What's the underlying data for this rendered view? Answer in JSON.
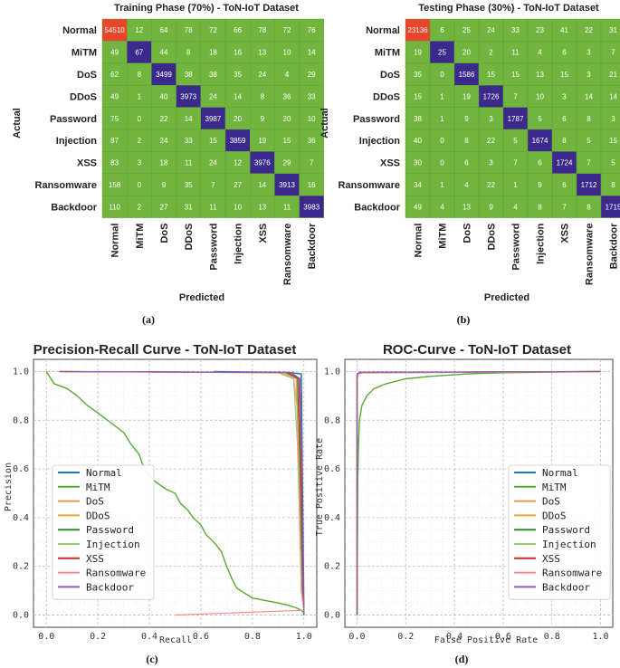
{
  "captions": [
    "(a)",
    "(b)",
    "(c)",
    "(d)"
  ],
  "colors": {
    "cell_default": "#72b53e",
    "cell_diag": "#3b2a8c",
    "cell_max": "#e8452b",
    "grid": "#cccccc"
  },
  "chart_data": [
    {
      "type": "heatmap",
      "title": "Training Phase (70%) - ToN-IoT Dataset",
      "xlabel": "Predicted",
      "ylabel": "Actual",
      "labels": [
        "Normal",
        "MiTM",
        "DoS",
        "DDoS",
        "Password",
        "Injection",
        "XSS",
        "Ransomware",
        "Backdoor"
      ],
      "matrix": [
        [
          54510,
          12,
          64,
          78,
          72,
          66,
          78,
          72,
          76
        ],
        [
          49,
          67,
          44,
          8,
          18,
          16,
          13,
          10,
          14
        ],
        [
          62,
          8,
          3499,
          38,
          38,
          35,
          24,
          4,
          29
        ],
        [
          49,
          1,
          40,
          3973,
          24,
          14,
          8,
          36,
          33
        ],
        [
          75,
          0,
          22,
          14,
          3987,
          20,
          9,
          20,
          10
        ],
        [
          87,
          2,
          24,
          33,
          15,
          3859,
          19,
          15,
          36
        ],
        [
          83,
          3,
          18,
          11,
          24,
          12,
          3976,
          29,
          7
        ],
        [
          158,
          0,
          9,
          35,
          7,
          27,
          14,
          3913,
          16
        ],
        [
          110,
          2,
          27,
          31,
          11,
          10,
          13,
          11,
          3983
        ]
      ]
    },
    {
      "type": "heatmap",
      "title": "Testing Phase (30%) - ToN-IoT Dataset",
      "xlabel": "Predicted",
      "ylabel": "Actual",
      "labels": [
        "Normal",
        "MiTM",
        "DoS",
        "DDoS",
        "Password",
        "Injection",
        "XSS",
        "Ransomware",
        "Backdoor"
      ],
      "matrix": [
        [
          23136,
          6,
          25,
          24,
          33,
          23,
          41,
          22,
          31
        ],
        [
          19,
          25,
          20,
          2,
          11,
          4,
          6,
          3,
          7
        ],
        [
          35,
          0,
          1586,
          15,
          15,
          13,
          15,
          3,
          21
        ],
        [
          15,
          1,
          19,
          1726,
          7,
          10,
          3,
          14,
          14
        ],
        [
          38,
          1,
          9,
          3,
          1787,
          5,
          6,
          8,
          3
        ],
        [
          40,
          0,
          8,
          22,
          5,
          1674,
          8,
          5,
          15
        ],
        [
          30,
          0,
          6,
          3,
          7,
          6,
          1724,
          7,
          5
        ],
        [
          34,
          1,
          4,
          22,
          1,
          9,
          6,
          1712,
          8
        ],
        [
          49,
          4,
          13,
          9,
          4,
          8,
          7,
          8,
          1715
        ]
      ]
    },
    {
      "type": "line",
      "title": "Precision-Recall Curve - ToN-IoT Dataset",
      "xlabel": "Recall",
      "ylabel": "Precision",
      "xlim": [
        -0.05,
        1.05
      ],
      "ylim": [
        -0.05,
        1.05
      ],
      "xticks": [
        "0.0",
        "0.2",
        "0.4",
        "0.6",
        "0.8",
        "1.0"
      ],
      "yticks": [
        "0.0",
        "0.2",
        "0.4",
        "0.6",
        "0.8",
        "1.0"
      ],
      "series": [
        {
          "name": "Normal",
          "color": "#1f77b4",
          "width": 1.5,
          "points": [
            [
              0.65,
              1.0
            ],
            [
              0.95,
              0.995
            ],
            [
              0.99,
              0.99
            ],
            [
              0.995,
              0.5
            ],
            [
              1.0,
              0.0
            ]
          ]
        },
        {
          "name": "MiTM",
          "color": "#5aa832",
          "width": 1.4,
          "points": [
            [
              0.0,
              1.0
            ],
            [
              0.03,
              0.95
            ],
            [
              0.08,
              0.93
            ],
            [
              0.12,
              0.9
            ],
            [
              0.16,
              0.86
            ],
            [
              0.2,
              0.83
            ],
            [
              0.25,
              0.79
            ],
            [
              0.3,
              0.75
            ],
            [
              0.33,
              0.7
            ],
            [
              0.36,
              0.66
            ],
            [
              0.38,
              0.6
            ],
            [
              0.42,
              0.55
            ],
            [
              0.46,
              0.52
            ],
            [
              0.5,
              0.5
            ],
            [
              0.52,
              0.46
            ],
            [
              0.55,
              0.43
            ],
            [
              0.57,
              0.4
            ],
            [
              0.6,
              0.37
            ],
            [
              0.62,
              0.33
            ],
            [
              0.65,
              0.3
            ],
            [
              0.68,
              0.26
            ],
            [
              0.7,
              0.2
            ],
            [
              0.72,
              0.15
            ],
            [
              0.74,
              0.11
            ],
            [
              0.77,
              0.09
            ],
            [
              0.8,
              0.07
            ],
            [
              0.85,
              0.06
            ],
            [
              0.9,
              0.05
            ],
            [
              0.94,
              0.04
            ],
            [
              0.97,
              0.03
            ],
            [
              0.99,
              0.02
            ],
            [
              1.0,
              0.01
            ]
          ]
        },
        {
          "name": "DoS",
          "color": "#e89a55",
          "width": 1.2,
          "points": [
            [
              0.05,
              1.0
            ],
            [
              0.9,
              0.995
            ],
            [
              0.96,
              0.97
            ],
            [
              0.98,
              0.8
            ],
            [
              0.99,
              0.3
            ],
            [
              1.0,
              0.02
            ]
          ]
        },
        {
          "name": "DDoS",
          "color": "#f0a040",
          "width": 1.2,
          "points": [
            [
              0.05,
              1.0
            ],
            [
              0.92,
              0.996
            ],
            [
              0.97,
              0.97
            ],
            [
              0.985,
              0.7
            ],
            [
              0.995,
              0.1
            ],
            [
              1.0,
              0.02
            ]
          ]
        },
        {
          "name": "Password",
          "color": "#2e8b2e",
          "width": 1.2,
          "points": [
            [
              0.05,
              1.0
            ],
            [
              0.93,
              0.996
            ],
            [
              0.975,
              0.97
            ],
            [
              0.985,
              0.6
            ],
            [
              0.995,
              0.1
            ],
            [
              1.0,
              0.02
            ]
          ]
        },
        {
          "name": "Injection",
          "color": "#8fd16f",
          "width": 1.2,
          "points": [
            [
              0.05,
              1.0
            ],
            [
              0.91,
              0.995
            ],
            [
              0.96,
              0.97
            ],
            [
              0.975,
              0.7
            ],
            [
              0.99,
              0.1
            ],
            [
              1.0,
              0.02
            ]
          ]
        },
        {
          "name": "XSS",
          "color": "#d62728",
          "width": 1.2,
          "points": [
            [
              0.05,
              1.0
            ],
            [
              0.94,
              0.996
            ],
            [
              0.98,
              0.97
            ],
            [
              0.99,
              0.6
            ],
            [
              0.997,
              0.1
            ],
            [
              1.0,
              0.02
            ]
          ]
        },
        {
          "name": "Ransomware",
          "color": "#ff8c8c",
          "width": 1.2,
          "points": [
            [
              0.05,
              1.0
            ],
            [
              0.92,
              0.995
            ],
            [
              0.97,
              0.97
            ],
            [
              0.98,
              0.6
            ],
            [
              0.99,
              0.1
            ],
            [
              1.0,
              0.02
            ],
            [
              0.5,
              0.0
            ]
          ]
        },
        {
          "name": "Backdoor",
          "color": "#8e5ab5",
          "width": 1.2,
          "points": [
            [
              0.05,
              1.0
            ],
            [
              0.95,
              0.996
            ],
            [
              0.985,
              0.97
            ],
            [
              0.993,
              0.6
            ],
            [
              0.998,
              0.1
            ],
            [
              1.0,
              0.02
            ]
          ]
        }
      ]
    },
    {
      "type": "line",
      "title": "ROC-Curve - ToN-IoT Dataset",
      "xlabel": "False Positive Rate",
      "ylabel": "True Positive Rate",
      "xlim": [
        -0.05,
        1.05
      ],
      "ylim": [
        -0.05,
        1.05
      ],
      "xticks": [
        "0.0",
        "0.2",
        "0.4",
        "0.6",
        "0.8",
        "1.0"
      ],
      "yticks": [
        "0.0",
        "0.2",
        "0.4",
        "0.6",
        "0.8",
        "1.0"
      ],
      "series": [
        {
          "name": "Normal",
          "color": "#1f77b4",
          "width": 1.5,
          "points": [
            [
              0.0,
              0.0
            ],
            [
              0.0,
              0.97
            ],
            [
              0.005,
              0.99
            ],
            [
              0.02,
              0.995
            ],
            [
              1.0,
              1.0
            ]
          ]
        },
        {
          "name": "MiTM",
          "color": "#5aa832",
          "width": 1.4,
          "points": [
            [
              0.0,
              0.0
            ],
            [
              0.003,
              0.55
            ],
            [
              0.006,
              0.7
            ],
            [
              0.01,
              0.8
            ],
            [
              0.02,
              0.86
            ],
            [
              0.04,
              0.9
            ],
            [
              0.07,
              0.93
            ],
            [
              0.12,
              0.95
            ],
            [
              0.2,
              0.97
            ],
            [
              0.3,
              0.98
            ],
            [
              0.45,
              0.99
            ],
            [
              0.6,
              0.995
            ],
            [
              1.0,
              1.0
            ]
          ]
        },
        {
          "name": "DoS",
          "color": "#e89a55",
          "width": 1.2,
          "points": [
            [
              0.0,
              0.0
            ],
            [
              0.0,
              0.98
            ],
            [
              0.01,
              0.995
            ],
            [
              1.0,
              1.0
            ]
          ]
        },
        {
          "name": "DDoS",
          "color": "#f0a040",
          "width": 1.2,
          "points": [
            [
              0.0,
              0.0
            ],
            [
              0.0,
              0.985
            ],
            [
              0.01,
              0.996
            ],
            [
              1.0,
              1.0
            ]
          ]
        },
        {
          "name": "Password",
          "color": "#2e8b2e",
          "width": 1.2,
          "points": [
            [
              0.0,
              0.0
            ],
            [
              0.0,
              0.985
            ],
            [
              0.01,
              0.996
            ],
            [
              1.0,
              1.0
            ]
          ]
        },
        {
          "name": "Injection",
          "color": "#8fd16f",
          "width": 1.2,
          "points": [
            [
              0.0,
              0.0
            ],
            [
              0.0,
              0.98
            ],
            [
              0.01,
              0.995
            ],
            [
              1.0,
              1.0
            ]
          ]
        },
        {
          "name": "XSS",
          "color": "#d62728",
          "width": 1.2,
          "points": [
            [
              0.0,
              0.0
            ],
            [
              0.0,
              0.985
            ],
            [
              0.01,
              0.996
            ],
            [
              1.0,
              1.0
            ]
          ]
        },
        {
          "name": "Ransomware",
          "color": "#ff8c8c",
          "width": 1.2,
          "points": [
            [
              0.0,
              0.0
            ],
            [
              0.0,
              0.98
            ],
            [
              0.01,
              0.995
            ],
            [
              1.0,
              1.0
            ]
          ]
        },
        {
          "name": "Backdoor",
          "color": "#8e5ab5",
          "width": 1.2,
          "points": [
            [
              0.0,
              0.0
            ],
            [
              0.0,
              0.99
            ],
            [
              0.01,
              0.997
            ],
            [
              1.0,
              1.0
            ]
          ]
        }
      ]
    }
  ]
}
